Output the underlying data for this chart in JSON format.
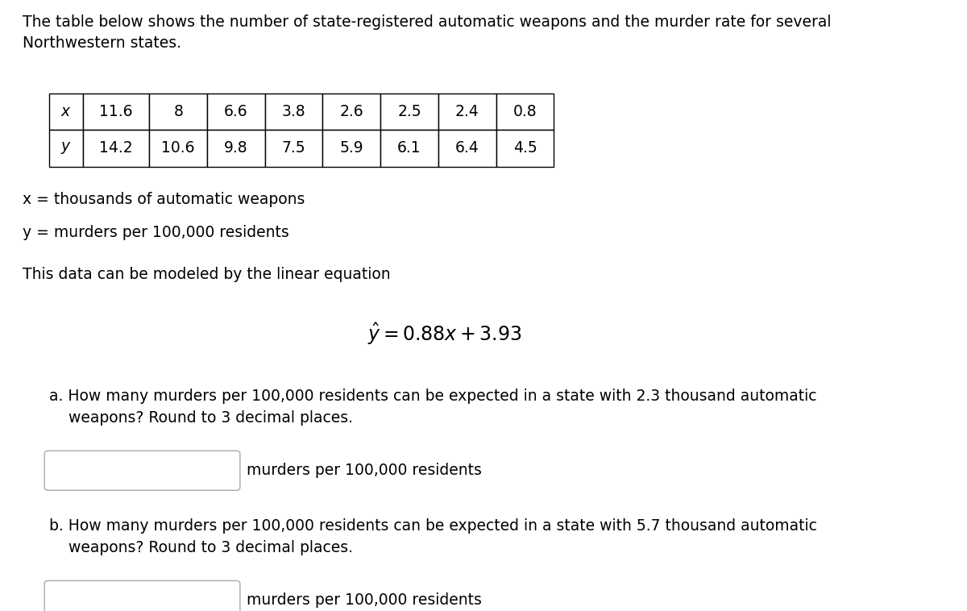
{
  "title_text": "The table below shows the number of state-registered automatic weapons and the murder rate for several\nNorthwestern states.",
  "x_values": [
    "11.6",
    "8",
    "6.6",
    "3.8",
    "2.6",
    "2.5",
    "2.4",
    "0.8"
  ],
  "y_values": [
    "14.2",
    "10.6",
    "9.8",
    "7.5",
    "5.9",
    "6.1",
    "6.4",
    "4.5"
  ],
  "x_label": "x",
  "y_label": "y",
  "legend_x": "x = thousands of automatic weapons",
  "legend_y": "y = murders per 100,000 residents",
  "model_intro": "This data can be modeled by the linear equation",
  "equation": "$\\hat{y} = 0.88x + 3.93$",
  "question_a": "a. How many murders per 100,000 residents can be expected in a state with 2.3 thousand automatic\n    weapons? Round to 3 decimal places.",
  "answer_label": "murders per 100,000 residents",
  "question_b": "b. How many murders per 100,000 residents can be expected in a state with 5.7 thousand automatic\n    weapons? Round to 3 decimal places.",
  "bg_color": "#ffffff",
  "text_color": "#000000",
  "font_size_body": 13.5,
  "font_size_title": 13.5,
  "font_size_eq": 17,
  "table_header_bg": "#dce6f1",
  "table_border_color": "#000000"
}
